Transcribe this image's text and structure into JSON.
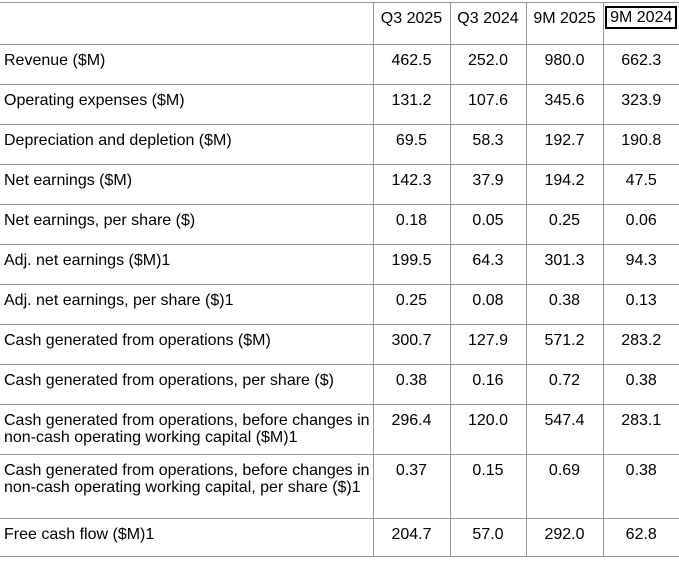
{
  "table": {
    "columns": [
      "Q3 2025",
      "Q3 2024",
      "9M 2025",
      "9M 2024"
    ],
    "selected_column": "9M 2024",
    "rows": [
      {
        "label": "Revenue ($M)",
        "values": [
          "462.5",
          "252.0",
          "980.0",
          "662.3"
        ]
      },
      {
        "label": "Operating expenses ($M)",
        "values": [
          "131.2",
          "107.6",
          "345.6",
          "323.9"
        ]
      },
      {
        "label": "Depreciation and depletion ($M)",
        "values": [
          "69.5",
          "58.3",
          "192.7",
          "190.8"
        ]
      },
      {
        "label": "Net earnings ($M)",
        "values": [
          "142.3",
          "37.9",
          "194.2",
          "47.5"
        ]
      },
      {
        "label": "Net earnings, per share ($)",
        "values": [
          "0.18",
          "0.05",
          "0.25",
          "0.06"
        ]
      },
      {
        "label": "Adj. net earnings ($M)1",
        "values": [
          "199.5",
          "64.3",
          "301.3",
          "94.3"
        ]
      },
      {
        "label": "Adj. net earnings, per share ($)1",
        "values": [
          "0.25",
          "0.08",
          "0.38",
          "0.13"
        ]
      },
      {
        "label": "Cash generated from operations ($M)",
        "values": [
          "300.7",
          "127.9",
          "571.2",
          "283.2"
        ]
      },
      {
        "label": "Cash generated from operations, per share ($)",
        "values": [
          "0.38",
          "0.16",
          "0.72",
          "0.38"
        ]
      },
      {
        "label": "Cash generated from operations, before changes in non-cash operating working capital ($M)1",
        "values": [
          "296.4",
          "120.0",
          "547.4",
          "283.1"
        ]
      },
      {
        "label": "Cash generated from operations, before changes in non-cash operating working capital, per share ($)1",
        "values": [
          "0.37",
          "0.15",
          "0.69",
          "0.38"
        ]
      },
      {
        "label": "Free cash flow ($M)1",
        "values": [
          "204.7",
          "57.0",
          "292.0",
          "62.8"
        ]
      }
    ],
    "colors": {
      "border": "#969696",
      "text": "#000000",
      "selection_box_border": "#000000",
      "background": "#ffffff"
    }
  }
}
